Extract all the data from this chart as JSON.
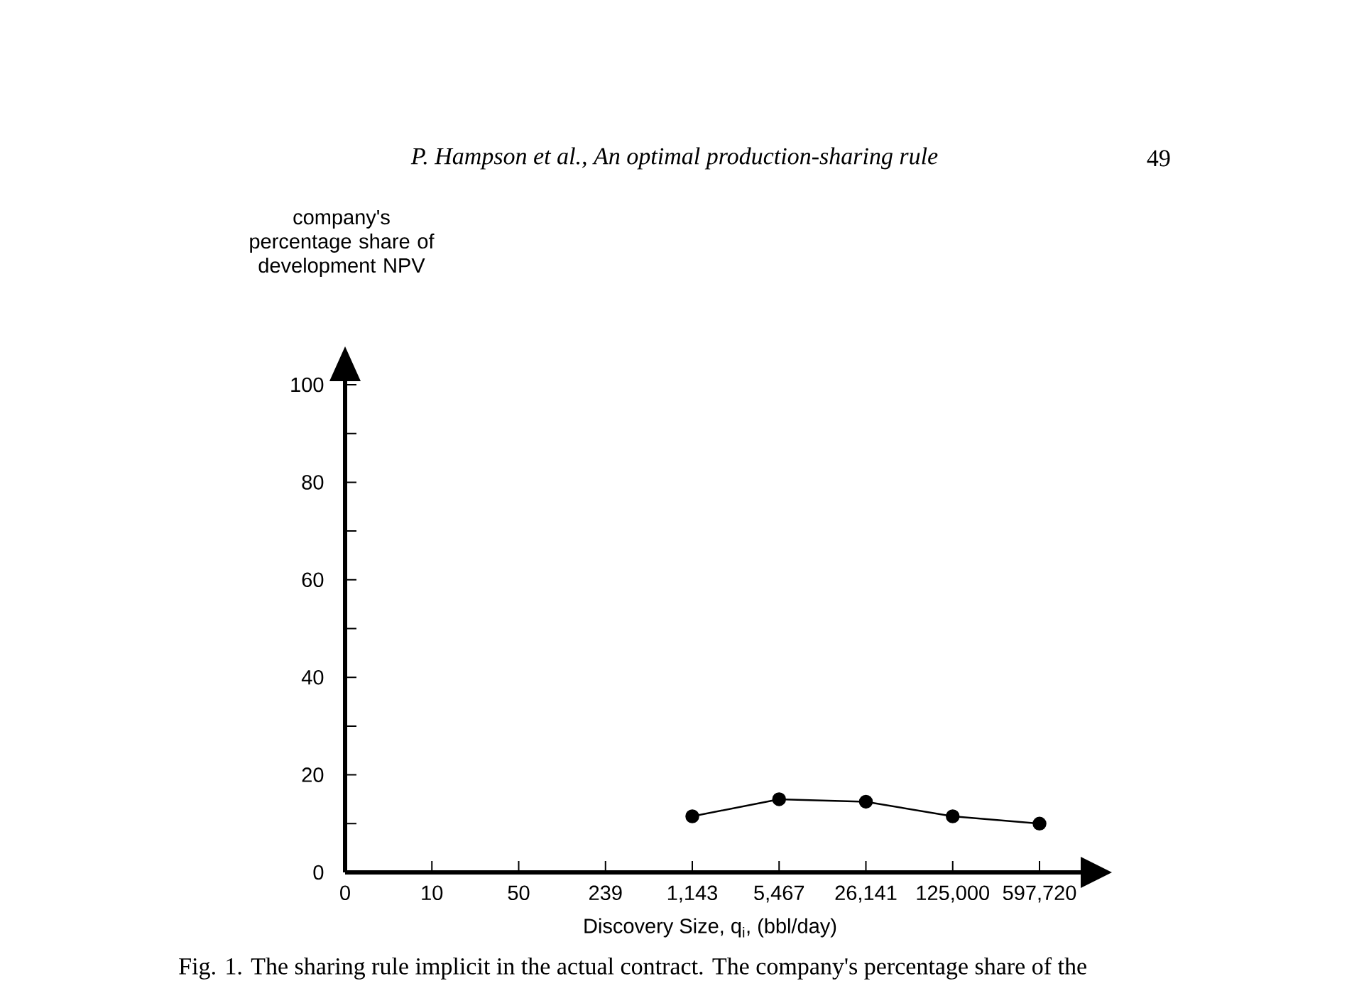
{
  "chart_data": {
    "type": "line",
    "xlabel": "Discovery Size, q$_{i}$, (bbl/day)",
    "ylabel": "company's percentage share of development NPV",
    "annotations": [
      "P. Hampson et al., An optimal production-sharing rule",
      "49",
      "Fig. 1. The sharing rule implicit in the actual contract. The company's percentage share of the"
    ],
    "categories": [
      "0",
      "10",
      "50",
      "239",
      "1,143",
      "5,467",
      "26,141",
      "125,000",
      "597,720"
    ],
    "series": [
      {
        "color": "#000000",
        "values": [
          null,
          null,
          null,
          null,
          11.5,
          15,
          14.5,
          11.5,
          10
        ]
      }
    ],
    "ylim": [
      0,
      100
    ],
    "yticks": [
      0,
      {
        "value": 10,
        "label": null
      },
      20,
      {
        "value": 30,
        "label": null
      },
      40,
      {
        "value": 50,
        "label": null
      },
      60,
      {
        "value": 70,
        "label": null
      },
      80,
      {
        "value": 90,
        "label": null
      },
      100
    ],
    "marker": "circle",
    "line_style": "solid"
  }
}
